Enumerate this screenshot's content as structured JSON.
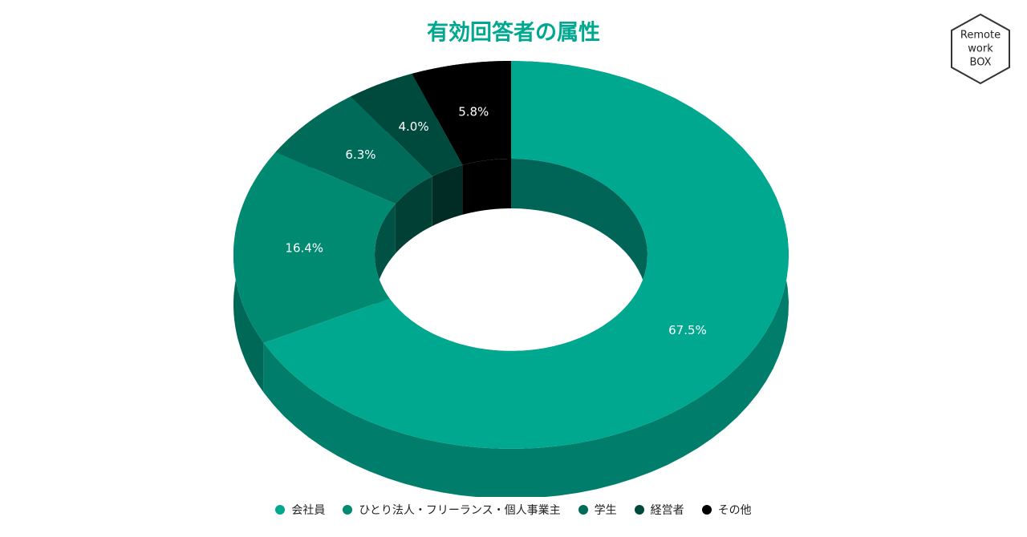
{
  "chart_data": {
    "type": "donut3d",
    "title": "有効回答者の属性",
    "categories": [
      "会社員",
      "ひとり法人・フリーランス・個人事業主",
      "学生",
      "経営者",
      "その他"
    ],
    "values": [
      67.5,
      16.4,
      6.3,
      4.0,
      5.8
    ],
    "value_labels": [
      "67.5%",
      "16.4%",
      "6.3%",
      "4.0%",
      "5.8%"
    ],
    "colors": [
      "#00a88f",
      "#008a72",
      "#006b58",
      "#004a3d",
      "#000000"
    ],
    "legend": "bottom"
  },
  "logo": {
    "lines": [
      "Remote",
      "work",
      "BOX"
    ]
  }
}
